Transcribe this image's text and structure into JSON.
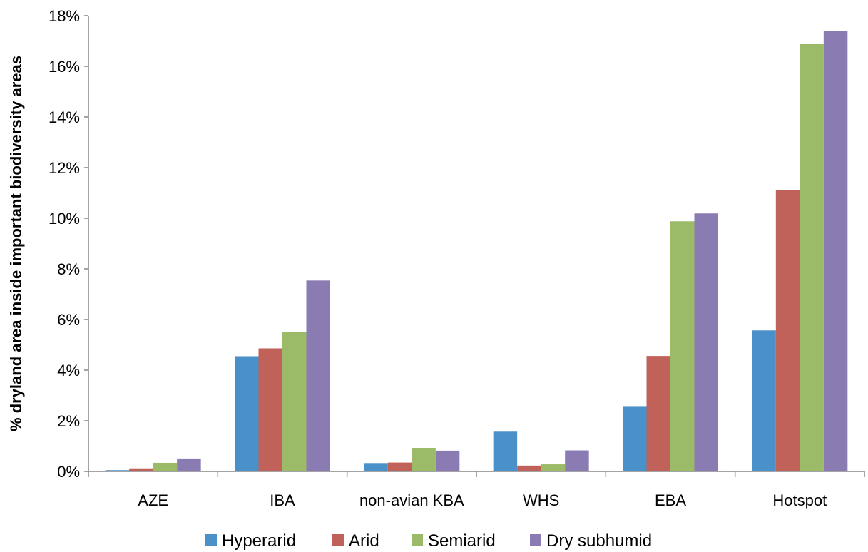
{
  "chart_data": {
    "type": "bar",
    "title": "",
    "xlabel": "",
    "ylabel": "% dryland area inside important biodiversity areas",
    "categories": [
      "AZE",
      "IBA",
      "non-avian KBA",
      "WHS",
      "EBA",
      "Hotspot"
    ],
    "series": [
      {
        "name": "Hyperarid",
        "color": "#4a90c9",
        "values": [
          0.0005,
          0.0455,
          0.0033,
          0.0157,
          0.0258,
          0.0557
        ]
      },
      {
        "name": "Arid",
        "color": "#c0625a",
        "values": [
          0.0012,
          0.0486,
          0.0035,
          0.0023,
          0.0456,
          0.1111
        ]
      },
      {
        "name": "Semiarid",
        "color": "#9cbb68",
        "values": [
          0.0034,
          0.0552,
          0.0093,
          0.0028,
          0.0988,
          0.169
        ]
      },
      {
        "name": "Dry subhumid",
        "color": "#8a7bb3",
        "values": [
          0.0051,
          0.0754,
          0.0082,
          0.0083,
          0.1019,
          0.174
        ]
      }
    ],
    "ylim": [
      0,
      0.18
    ],
    "yticks": [
      0,
      0.02,
      0.04,
      0.06,
      0.08,
      0.1,
      0.12,
      0.14,
      0.16,
      0.18
    ],
    "ytick_labels": [
      "0%",
      "2%",
      "4%",
      "6%",
      "8%",
      "10%",
      "12%",
      "14%",
      "16%",
      "18%"
    ],
    "grid": false,
    "legend_position": "bottom"
  }
}
